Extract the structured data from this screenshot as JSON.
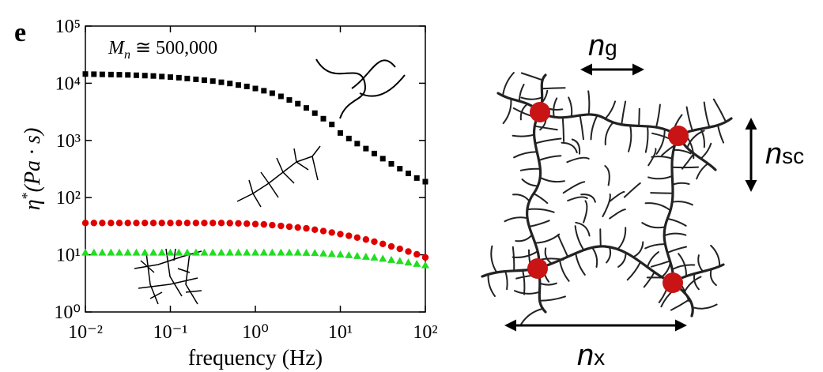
{
  "panel_label": "e",
  "chart_data": {
    "type": "scatter",
    "log_x": true,
    "log_y": true,
    "annotation": {
      "symbol": "M",
      "subscript": "n",
      "rest": " ≅ 500,000"
    },
    "xlabel": "frequency (Hz)",
    "ylabel": {
      "symbol": "η",
      "superscript": "*",
      "rest": "(Pa · s)"
    },
    "xlim": [
      0.01,
      100
    ],
    "ylim": [
      1,
      100000
    ],
    "xticks": [
      {
        "value": 0.01,
        "label": "10⁻²"
      },
      {
        "value": 0.1,
        "label": "10⁻¹"
      },
      {
        "value": 1,
        "label": "10⁰"
      },
      {
        "value": 10,
        "label": "10¹"
      },
      {
        "value": 100,
        "label": "10²"
      }
    ],
    "yticks": [
      {
        "value": 1,
        "label": "10⁰"
      },
      {
        "value": 10,
        "label": "10¹"
      },
      {
        "value": 100,
        "label": "10²"
      },
      {
        "value": 1000,
        "label": "10³"
      },
      {
        "value": 10000,
        "label": "10⁴"
      },
      {
        "value": 100000,
        "label": "10⁵"
      }
    ],
    "x": [
      0.01,
      0.0126,
      0.0158,
      0.02,
      0.0251,
      0.0316,
      0.0398,
      0.0501,
      0.0631,
      0.0794,
      0.1,
      0.126,
      0.158,
      0.2,
      0.251,
      0.316,
      0.398,
      0.501,
      0.631,
      0.794,
      1,
      1.26,
      1.58,
      2,
      2.51,
      3.16,
      3.98,
      5.01,
      6.31,
      7.94,
      10,
      12.6,
      15.8,
      20,
      25.1,
      31.6,
      39.8,
      50.1,
      63.1,
      79.4,
      100
    ],
    "series": [
      {
        "color": "#000000",
        "marker": "square",
        "values": [
          14500,
          14400,
          14300,
          14200,
          14100,
          14000,
          13800,
          13600,
          13400,
          13100,
          12800,
          12500,
          12100,
          11700,
          11300,
          10900,
          10400,
          9900,
          9300,
          8800,
          8100,
          7400,
          6700,
          5900,
          5100,
          4400,
          3700,
          3000,
          2400,
          1900,
          1350,
          1080,
          880,
          720,
          590,
          480,
          390,
          320,
          265,
          220,
          190
        ]
      },
      {
        "color": "#e00000",
        "marker": "circle",
        "values": [
          36,
          36,
          36,
          36,
          36,
          36,
          36,
          36,
          36,
          36,
          36,
          36,
          36,
          36,
          36,
          36,
          36,
          35.8,
          35.5,
          35,
          34.5,
          34,
          33,
          32,
          31,
          30,
          29,
          27.5,
          26,
          24.5,
          23,
          21.5,
          20,
          18.5,
          17,
          15.5,
          14,
          12.7,
          11.4,
          10.2,
          9
        ]
      },
      {
        "color": "#22dd22",
        "marker": "triangle",
        "values": [
          11,
          11,
          11,
          11,
          11,
          11,
          11,
          11,
          11,
          11,
          11,
          11,
          11,
          11,
          11,
          11,
          11,
          11,
          11,
          11,
          11,
          11,
          11,
          11,
          11,
          11,
          10.9,
          10.8,
          10.6,
          10.4,
          10.2,
          9.9,
          9.6,
          9.3,
          9,
          8.6,
          8.2,
          7.8,
          7.4,
          7,
          6.6
        ]
      }
    ]
  },
  "diagram": {
    "labels": [
      {
        "symbol": "n",
        "subscript": "g"
      },
      {
        "symbol": "n",
        "subscript": "sc"
      },
      {
        "symbol": "n",
        "subscript": "x"
      }
    ]
  }
}
